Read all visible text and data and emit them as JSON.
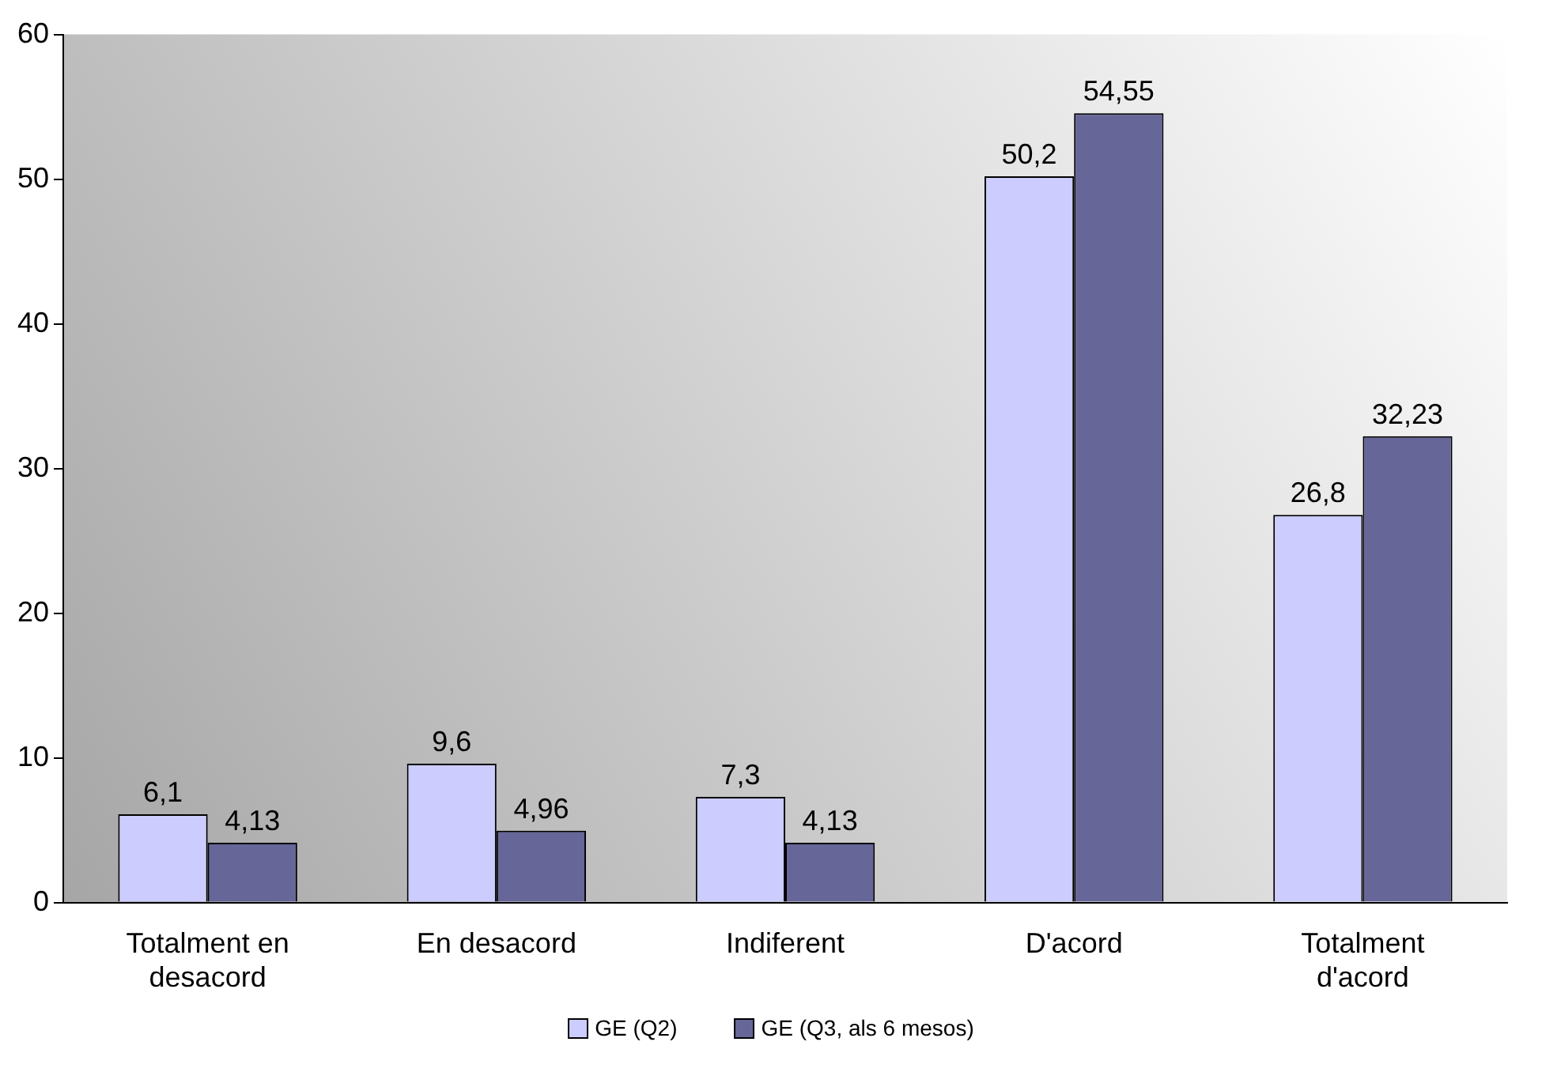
{
  "chart_data": {
    "type": "bar",
    "categories": [
      "Totalment en desacord",
      "En desacord",
      "Indiferent",
      "D'acord",
      "Totalment d'acord"
    ],
    "series": [
      {
        "name": "GE (Q2)",
        "color": "#ccccff",
        "values": [
          6.1,
          9.6,
          7.3,
          50.2,
          26.8
        ],
        "value_labels": [
          "6,1",
          "9,6",
          "7,3",
          "50,2",
          "26,8"
        ]
      },
      {
        "name": "GE (Q3, als 6 mesos)",
        "color": "#666699",
        "values": [
          4.13,
          4.96,
          4.13,
          54.55,
          32.23
        ],
        "value_labels": [
          "4,13",
          "4,96",
          "4,13",
          "54,55",
          "32,23"
        ]
      }
    ],
    "ylim": [
      0,
      60
    ],
    "yticks": [
      0,
      10,
      20,
      30,
      40,
      50,
      60
    ],
    "grid": false,
    "legend": "bottom"
  }
}
